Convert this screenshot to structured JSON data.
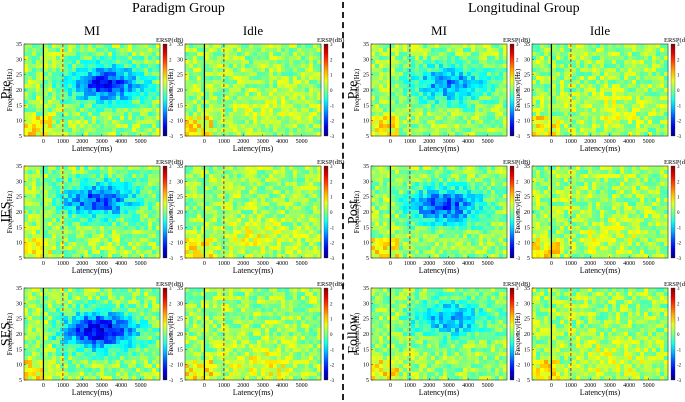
{
  "groups": [
    {
      "title": "Paradigm Group",
      "conditions": [
        "MI",
        "Idle"
      ],
      "rows": [
        "Pre",
        "IES",
        "SES"
      ]
    },
    {
      "title": "Longitudinal Group",
      "conditions": [
        "MI",
        "Idle"
      ],
      "rows": [
        "Pre",
        "Post",
        "Follow"
      ]
    }
  ],
  "chart_data": {
    "type": "heatmap",
    "description_values": "event-related spectral perturbation maps",
    "xlabel": "Latency(ms)",
    "ylabel": "Frequency(Hz)",
    "colorbar_label": "ERSP(dB)",
    "x_range": [
      -1000,
      6000
    ],
    "y_range": [
      5,
      35
    ],
    "clim": [
      -3,
      3
    ],
    "x_ticks": [
      "0",
      "1000",
      "2000",
      "3000",
      "4000",
      "5000"
    ],
    "y_ticks": [
      "5",
      "10",
      "15",
      "20",
      "25",
      "30",
      "35"
    ],
    "colorbar_ticks": [
      "3",
      "2",
      "1",
      "0",
      "-1",
      "-2",
      "-3"
    ],
    "markers": [
      {
        "type": "solid",
        "latency_ms": 0
      },
      {
        "type": "dashed",
        "latency_ms": 1000
      }
    ],
    "colors": {
      "high": "#b00000",
      "mid": "#40e0d0",
      "low": "#0000a0",
      "marker_dashed": "#cc2222"
    },
    "panels": [
      {
        "group": "Paradigm Group",
        "row": "Pre",
        "condition": "MI",
        "blob_strength": -2.2,
        "blob_center": [
          3200,
          22
        ]
      },
      {
        "group": "Paradigm Group",
        "row": "Pre",
        "condition": "Idle",
        "blob_strength": 0.2,
        "blob_center": [
          3000,
          12
        ]
      },
      {
        "group": "Paradigm Group",
        "row": "IES",
        "condition": "MI",
        "blob_strength": -2.0,
        "blob_center": [
          2800,
          24
        ]
      },
      {
        "group": "Paradigm Group",
        "row": "IES",
        "condition": "Idle",
        "blob_strength": 0.4,
        "blob_center": [
          2500,
          12
        ]
      },
      {
        "group": "Paradigm Group",
        "row": "SES",
        "condition": "MI",
        "blob_strength": -2.6,
        "blob_center": [
          2900,
          21
        ]
      },
      {
        "group": "Paradigm Group",
        "row": "SES",
        "condition": "Idle",
        "blob_strength": 0.5,
        "blob_center": [
          3000,
          10
        ]
      },
      {
        "group": "Longitudinal Group",
        "row": "Pre",
        "condition": "MI",
        "blob_strength": -1.6,
        "blob_center": [
          3000,
          22
        ]
      },
      {
        "group": "Longitudinal Group",
        "row": "Pre",
        "condition": "Idle",
        "blob_strength": 0.3,
        "blob_center": [
          3000,
          13
        ]
      },
      {
        "group": "Longitudinal Group",
        "row": "Post",
        "condition": "MI",
        "blob_strength": -2.0,
        "blob_center": [
          2800,
          22
        ]
      },
      {
        "group": "Longitudinal Group",
        "row": "Post",
        "condition": "Idle",
        "blob_strength": 0.3,
        "blob_center": [
          3000,
          12
        ]
      },
      {
        "group": "Longitudinal Group",
        "row": "Follow",
        "condition": "MI",
        "blob_strength": -1.4,
        "blob_center": [
          3000,
          25
        ]
      },
      {
        "group": "Longitudinal Group",
        "row": "Follow",
        "condition": "Idle",
        "blob_strength": 0.4,
        "blob_center": [
          3000,
          11
        ]
      }
    ]
  }
}
